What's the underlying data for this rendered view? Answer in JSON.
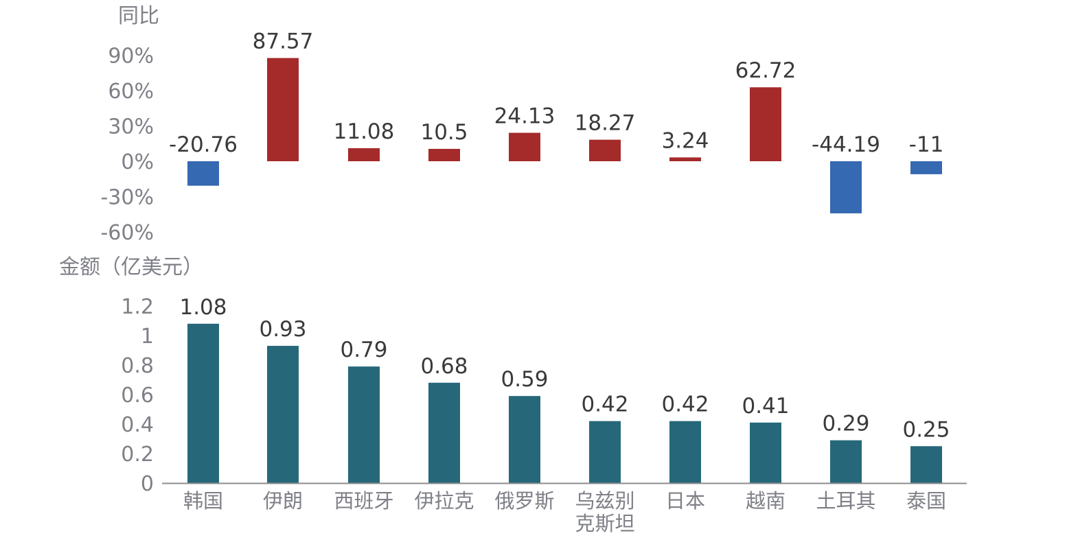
{
  "chart_data": [
    {
      "type": "bar",
      "ylabel": "同比",
      "categories": [
        "韩国",
        "伊朗",
        "西班牙",
        "伊拉克",
        "俄罗斯",
        "乌兹别克斯坦",
        "日本",
        "越南",
        "土耳其",
        "泰国"
      ],
      "values": [
        -20.76,
        87.57,
        11.08,
        10.5,
        24.13,
        18.27,
        3.24,
        62.72,
        -44.19,
        -11
      ],
      "data_labels": [
        "-20.76",
        "87.57",
        "11.08",
        "10.5",
        "24.13",
        "18.27",
        "3.24",
        "62.72",
        "-44.19",
        "-11"
      ],
      "ylim": [
        -60,
        90
      ],
      "yticks": [
        90,
        60,
        30,
        0,
        -30,
        -60
      ],
      "ytick_labels": [
        "90%",
        "60%",
        "30%",
        "0%",
        "-30%",
        "-60%"
      ],
      "positive_color": "#a52a2a",
      "negative_color": "#3569b1",
      "grid": false
    },
    {
      "type": "bar",
      "ylabel": "金额（亿美元）",
      "categories": [
        "韩国",
        "伊朗",
        "西班牙",
        "伊拉克",
        "俄罗斯",
        "乌兹别克斯坦",
        "日本",
        "越南",
        "土耳其",
        "泰国"
      ],
      "category_lines": [
        [
          "韩国"
        ],
        [
          "伊朗"
        ],
        [
          "西班牙"
        ],
        [
          "伊拉克"
        ],
        [
          "俄罗斯"
        ],
        [
          "乌兹别",
          "克斯坦"
        ],
        [
          "日本"
        ],
        [
          "越南"
        ],
        [
          "土耳其"
        ],
        [
          "泰国"
        ]
      ],
      "values": [
        1.08,
        0.93,
        0.79,
        0.68,
        0.59,
        0.42,
        0.42,
        0.41,
        0.29,
        0.25
      ],
      "data_labels": [
        "1.08",
        "0.93",
        "0.79",
        "0.68",
        "0.59",
        "0.42",
        "0.42",
        "0.41",
        "0.29",
        "0.25"
      ],
      "ylim": [
        0,
        1.2
      ],
      "yticks": [
        1.2,
        1,
        0.8,
        0.6,
        0.4,
        0.2,
        0
      ],
      "ytick_labels": [
        "1.2",
        "1",
        "0.8",
        "0.6",
        "0.4",
        "0.2",
        "0"
      ],
      "bar_color": "#26687a",
      "axis_color": "#8c8c8c",
      "grid": false
    }
  ]
}
